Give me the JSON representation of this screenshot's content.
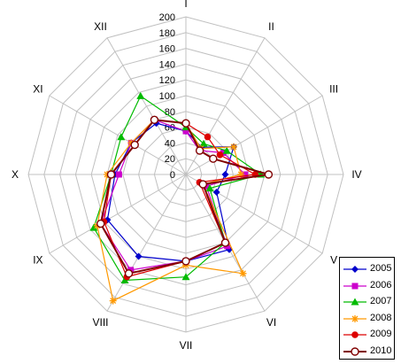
{
  "chart_data": {
    "type": "radar",
    "categories": [
      "I",
      "II",
      "III",
      "IV",
      "V",
      "VI",
      "VII",
      "VIII",
      "IX",
      "X",
      "XI",
      "XII"
    ],
    "rlim": [
      0,
      200
    ],
    "rticks": [
      "0",
      "20",
      "40",
      "60",
      "80",
      "100",
      "120",
      "140",
      "160",
      "180",
      "200"
    ],
    "grid": true,
    "legend_position": "bottom-right",
    "series": [
      {
        "name": "2005",
        "color": "#0000cc",
        "marker": "diamond",
        "values": [
          55,
          40,
          70,
          50,
          45,
          110,
          110,
          120,
          115,
          90,
          80,
          75
        ]
      },
      {
        "name": "2006",
        "color": "#cc00cc",
        "marker": "square",
        "values": [
          55,
          35,
          55,
          75,
          30,
          105,
          110,
          140,
          125,
          85,
          80,
          80
        ]
      },
      {
        "name": "2007",
        "color": "#00bb00",
        "marker": "triangle",
        "values": [
          60,
          45,
          60,
          95,
          35,
          100,
          130,
          155,
          135,
          95,
          95,
          115
        ]
      },
      {
        "name": "2008",
        "color": "#ff9900",
        "marker": "star",
        "values": [
          65,
          38,
          70,
          70,
          25,
          145,
          115,
          185,
          130,
          100,
          80,
          80
        ]
      },
      {
        "name": "2009",
        "color": "#dd0000",
        "marker": "circle",
        "values": [
          65,
          55,
          50,
          88,
          20,
          100,
          110,
          150,
          120,
          95,
          75,
          80
        ]
      },
      {
        "name": "2010",
        "color": "#800000",
        "marker": "circle-open",
        "values": [
          65,
          35,
          40,
          105,
          25,
          100,
          110,
          145,
          125,
          95,
          75,
          80
        ]
      }
    ]
  }
}
